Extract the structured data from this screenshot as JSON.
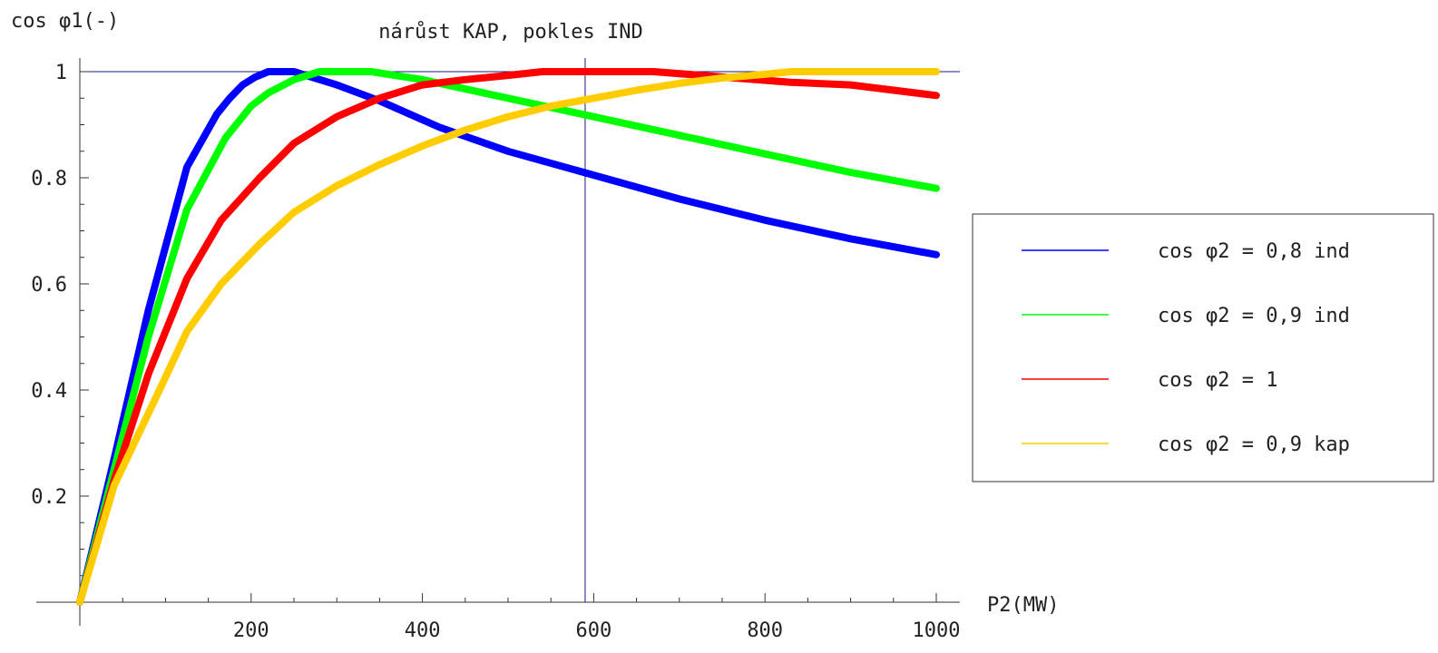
{
  "chart_data": {
    "type": "line",
    "title": "nárůst KAP, pokles IND",
    "ylabel": "cos φ1(-)",
    "xlabel": "P2(MW)",
    "xlim": [
      0,
      1000
    ],
    "ylim": [
      0,
      1
    ],
    "x_ticks": [
      200,
      400,
      600,
      800,
      1000
    ],
    "y_ticks": [
      0.2,
      0.4,
      0.6,
      0.8,
      1
    ],
    "x_tick_labels": [
      "200",
      "400",
      "600",
      "800",
      "1000"
    ],
    "y_tick_labels": [
      "0.2",
      "0.4",
      "0.6",
      "0.8",
      "1"
    ],
    "reference_lines": {
      "y": 1,
      "x": 590
    },
    "legend_position": "right",
    "series": [
      {
        "name": "cos φ2 = 0,8 ind",
        "color": "#0000ff",
        "x": [
          0,
          40,
          80,
          125,
          160,
          175,
          190,
          205,
          220,
          250,
          260,
          300,
          350,
          420,
          500,
          600,
          700,
          800,
          900,
          1000
        ],
        "y": [
          0.0,
          0.27,
          0.55,
          0.82,
          0.92,
          0.95,
          0.975,
          0.99,
          1.0,
          1.0,
          0.995,
          0.975,
          0.945,
          0.895,
          0.85,
          0.805,
          0.76,
          0.72,
          0.685,
          0.655
        ]
      },
      {
        "name": "cos φ2 = 0,9 ind",
        "color": "#00ff00",
        "x": [
          0,
          40,
          80,
          125,
          170,
          200,
          220,
          250,
          280,
          340,
          400,
          500,
          600,
          700,
          800,
          900,
          1000
        ],
        "y": [
          0.0,
          0.25,
          0.5,
          0.74,
          0.875,
          0.935,
          0.96,
          0.985,
          1.0,
          1.0,
          0.985,
          0.95,
          0.915,
          0.88,
          0.845,
          0.81,
          0.78
        ]
      },
      {
        "name": "cos φ2 = 1",
        "color": "#ff0000",
        "x": [
          0,
          40,
          80,
          125,
          165,
          210,
          250,
          300,
          350,
          400,
          450,
          500,
          540,
          600,
          670,
          750,
          830,
          900,
          1000
        ],
        "y": [
          0.0,
          0.23,
          0.43,
          0.61,
          0.72,
          0.8,
          0.865,
          0.915,
          0.95,
          0.975,
          0.985,
          0.993,
          1.0,
          1.0,
          1.0,
          0.99,
          0.98,
          0.975,
          0.955
        ]
      },
      {
        "name": "cos φ2 = 0,9 kap",
        "color": "#ffcc00",
        "x": [
          0,
          40,
          90,
          125,
          165,
          210,
          250,
          300,
          350,
          400,
          450,
          500,
          550,
          600,
          650,
          700,
          750,
          800,
          830,
          900,
          1000
        ],
        "y": [
          0.0,
          0.22,
          0.39,
          0.51,
          0.6,
          0.675,
          0.735,
          0.785,
          0.825,
          0.86,
          0.89,
          0.915,
          0.935,
          0.95,
          0.965,
          0.978,
          0.988,
          0.995,
          1.0,
          1.0,
          1.0
        ]
      }
    ]
  }
}
